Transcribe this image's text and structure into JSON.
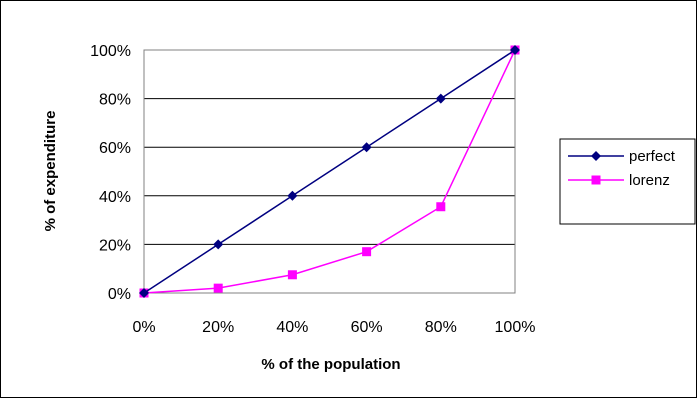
{
  "chart_data": {
    "type": "line",
    "title": "",
    "xlabel": "% of the population",
    "ylabel": "% of expenditure",
    "categories": [
      "0%",
      "20%",
      "40%",
      "60%",
      "80%",
      "100%"
    ],
    "x": [
      0,
      20,
      40,
      60,
      80,
      100
    ],
    "ylim": [
      0,
      100
    ],
    "yticks": [
      0,
      20,
      40,
      60,
      80,
      100
    ],
    "ytick_labels": [
      "0%",
      "20%",
      "40%",
      "60%",
      "80%",
      "100%"
    ],
    "grid": true,
    "legend_position": "right",
    "series": [
      {
        "name": "perfect",
        "values": [
          0,
          20,
          40,
          60,
          80,
          100
        ],
        "color": "#000080",
        "marker": "diamond"
      },
      {
        "name": "lorenz",
        "values": [
          0,
          2,
          7.5,
          17,
          35.5,
          100
        ],
        "color": "#ff00ff",
        "marker": "square"
      }
    ]
  }
}
